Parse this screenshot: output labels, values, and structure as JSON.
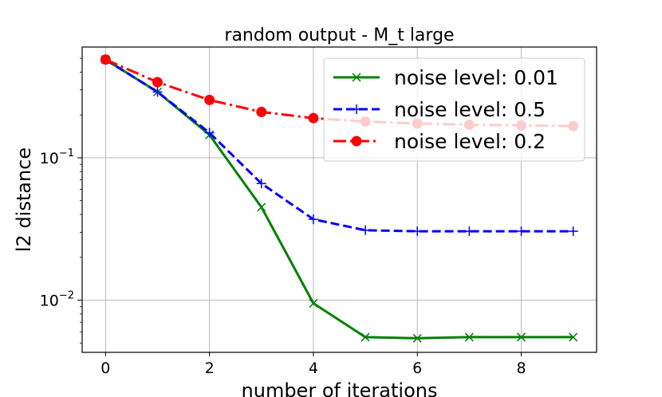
{
  "chart_data": {
    "type": "line",
    "title": "random output - M_t large",
    "xlabel": "number of iterations",
    "ylabel": "l2 distance",
    "yscale": "log",
    "grid": true,
    "legend_position": "top-right",
    "xlim": [
      -0.45,
      9.45
    ],
    "ylim": [
      0.0043,
      0.6
    ],
    "x_ticks": [
      {
        "value": 0,
        "label": "0"
      },
      {
        "value": 2,
        "label": "2"
      },
      {
        "value": 4,
        "label": "4"
      },
      {
        "value": 6,
        "label": "6"
      },
      {
        "value": 8,
        "label": "8"
      }
    ],
    "y_ticks": [
      {
        "value": 0.1,
        "base": "10",
        "exp": "−1"
      },
      {
        "value": 0.01,
        "base": "10",
        "exp": "−2"
      }
    ],
    "x": [
      0,
      1,
      2,
      3,
      4,
      5,
      6,
      7,
      8,
      9
    ],
    "series": [
      {
        "name": "noise level: 0.01",
        "color": "#008000",
        "linestyle": "solid",
        "marker": "x",
        "values": [
          0.49,
          0.29,
          0.145,
          0.045,
          0.0095,
          0.0055,
          0.0054,
          0.0055,
          0.0055,
          0.0055
        ]
      },
      {
        "name": "noise level: 0.5",
        "color": "#0000ff",
        "linestyle": "dashed",
        "marker": "+",
        "values": [
          0.49,
          0.29,
          0.15,
          0.066,
          0.037,
          0.031,
          0.0305,
          0.0305,
          0.0305,
          0.0305
        ]
      },
      {
        "name": "noise level: 0.2",
        "color": "#ff0000",
        "linestyle": "dashdot",
        "marker": "o",
        "values": [
          0.49,
          0.34,
          0.255,
          0.21,
          0.19,
          0.18,
          0.174,
          0.171,
          0.169,
          0.167
        ]
      }
    ]
  }
}
